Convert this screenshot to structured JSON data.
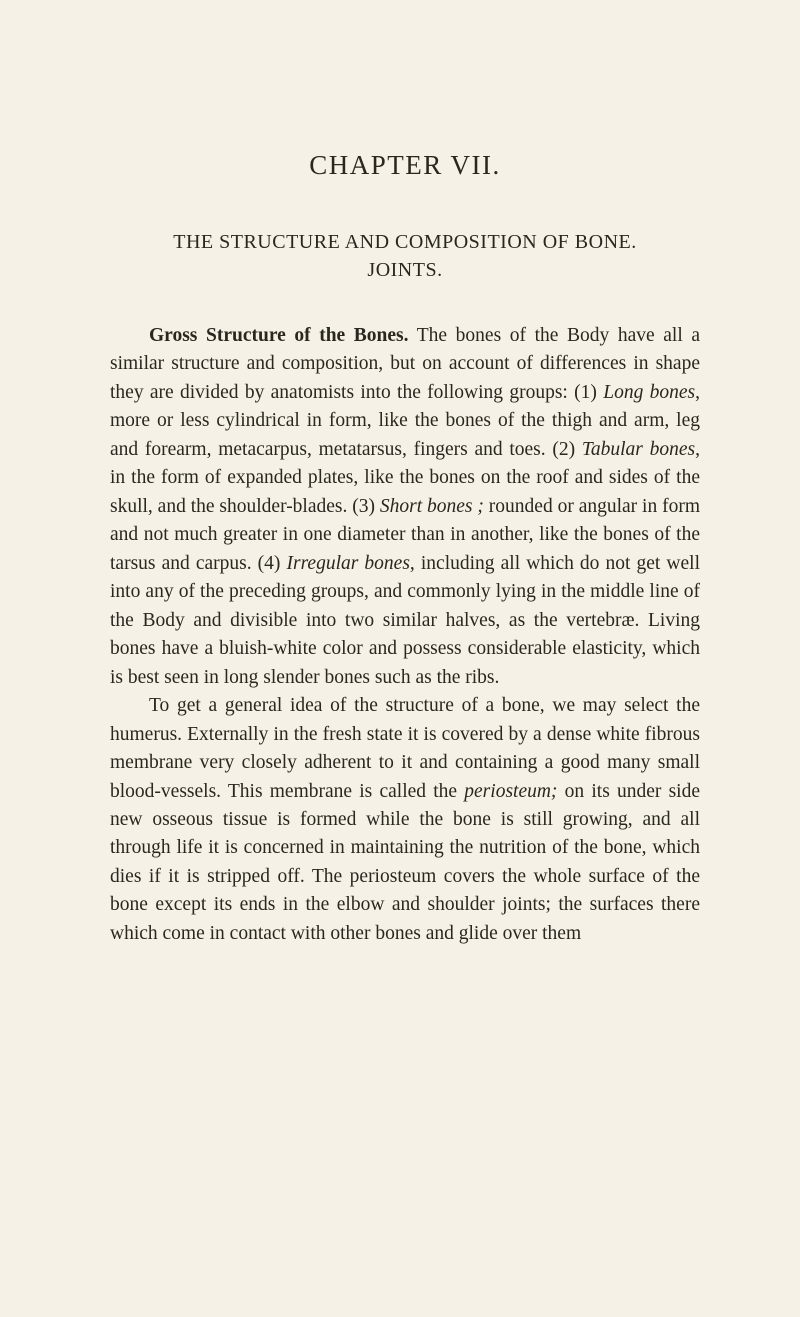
{
  "chapter": {
    "title": "CHAPTER VII."
  },
  "section": {
    "line1": "THE STRUCTURE AND COMPOSITION OF BONE.",
    "line2": "JOINTS."
  },
  "paragraphs": {
    "p1": {
      "lead": "Gross Structure of the Bones.",
      "text": " The bones of the Body have all a similar structure and composition, but on account of differences in shape they are divided by anatomists into the following groups: (1) ",
      "em1": "Long bones",
      "text2": ", more or less cylindrical in form, like the bones of the thigh and arm, leg and forearm, metacarpus, metatarsus, fingers and toes. (2) ",
      "em2": "Tabular bones",
      "text3": ", in the form of expanded plates, like the bones on the roof and sides of the skull, and the shoulder-blades. (3) ",
      "em3": "Short bones ;",
      "text4": " rounded or angular in form and not much greater in one diameter than in another, like the bones of the tarsus and carpus. (4) ",
      "em4": "Irregular bones",
      "text5": ", including all which do not get well into any of the preceding groups, and commonly lying in the middle line of the Body and divisible into two similar halves, as the vertebræ. Living bones have a bluish-white color and possess considerable elasticity, which is best seen in long slender bones such as the ribs."
    },
    "p2": {
      "text1": "To get a general idea of the structure of a bone, we may select the humerus. Externally in the fresh state it is covered by a dense white fibrous membrane very closely adherent to it and containing a good many small blood-vessels. This membrane is called the ",
      "em1": "periosteum;",
      "text2": " on its under side new osseous tissue is formed while the bone is still growing, and all through life it is concerned in maintaining the nutrition of the bone, which dies if it is stripped off. The periosteum covers the whole surface of the bone except its ends in the elbow and shoulder joints; the surfaces there which come in contact with other bones and glide over them"
    }
  }
}
